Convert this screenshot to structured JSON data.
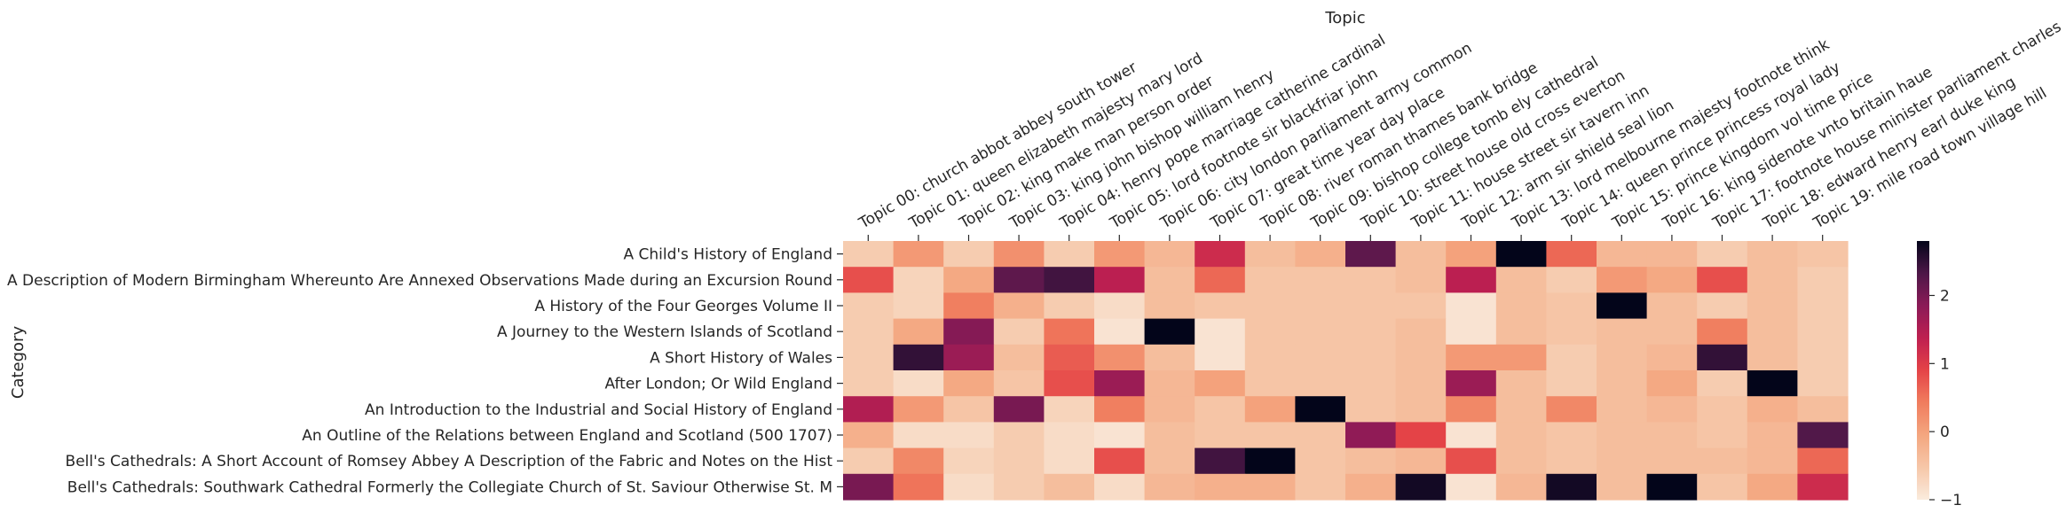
{
  "chart_data": {
    "type": "heatmap",
    "title": "",
    "xlabel": "Topic",
    "ylabel": "Category",
    "x_axis_position": "top",
    "grid": false,
    "colormap": "rocket_r",
    "colorbar": {
      "placement": "right",
      "vmin": -1.0,
      "vmax": 2.8,
      "ticks": [
        -1,
        0,
        1,
        2
      ]
    },
    "columns": [
      "Topic 00: church abbot abbey south tower",
      "Topic 01: queen elizabeth majesty mary lord",
      "Topic 02: king make man person order",
      "Topic 03: king john bishop william henry",
      "Topic 04: henry pope marriage catherine cardinal",
      "Topic 05: lord footnote sir blackfriar john",
      "Topic 06: city london parliament army common",
      "Topic 07: great time year day place",
      "Topic 08: river roman thames bank bridge",
      "Topic 09: bishop college tomb ely cathedral",
      "Topic 10: street house old cross everton",
      "Topic 11: house street sir tavern inn",
      "Topic 12: arm sir shield seal lion",
      "Topic 13: lord melbourne majesty footnote think",
      "Topic 14: queen prince princess royal lady",
      "Topic 15: prince kingdom vol time price",
      "Topic 16: king sidenote vnto britain haue",
      "Topic 17: footnote house minister parliament charles",
      "Topic 18: edward henry earl duke king",
      "Topic 19: mile road town village hill"
    ],
    "rows": [
      "A Child's History of England",
      "A Description of Modern Birmingham Whereunto Are Annexed Observations Made during an Excursion Round",
      "A History of the Four Georges Volume II",
      "A Journey to the Western Islands of Scotland",
      "A Short History of Wales",
      "After London; Or Wild England",
      "An Introduction to the Industrial and Social History of England",
      "An Outline of the Relations between England and Scotland (500 1707)",
      "Bell's Cathedrals: A Short Account of Romsey Abbey A Description of the Fabric and Notes on the Hist",
      "Bell's Cathedrals: Southwark Cathedral Formerly the Collegiate Church of St. Saviour Otherwise St. M"
    ],
    "values": [
      [
        -0.6,
        0.1,
        -0.6,
        0.2,
        -0.6,
        0.1,
        -0.3,
        1.2,
        -0.4,
        -0.2,
        2.2,
        -0.4,
        0.0,
        2.8,
        0.6,
        -0.3,
        -0.3,
        -0.6,
        -0.4,
        -0.5
      ],
      [
        0.8,
        -0.7,
        -0.1,
        2.2,
        2.4,
        1.4,
        -0.4,
        0.6,
        -0.5,
        -0.5,
        -0.5,
        -0.4,
        1.4,
        -0.4,
        -0.6,
        0.1,
        -0.1,
        0.8,
        -0.4,
        -0.6
      ],
      [
        -0.6,
        -0.7,
        0.4,
        -0.2,
        -0.6,
        -0.8,
        -0.4,
        -0.5,
        -0.5,
        -0.5,
        -0.5,
        -0.5,
        -0.9,
        -0.4,
        -0.5,
        2.8,
        -0.4,
        -0.6,
        -0.4,
        -0.6
      ],
      [
        -0.6,
        -0.1,
        1.9,
        -0.6,
        0.5,
        -0.9,
        2.8,
        -0.9,
        -0.5,
        -0.5,
        -0.5,
        -0.4,
        -0.9,
        -0.4,
        -0.5,
        -0.4,
        -0.4,
        0.4,
        -0.4,
        -0.6
      ],
      [
        -0.6,
        2.5,
        1.7,
        -0.4,
        0.7,
        0.2,
        -0.4,
        -0.9,
        -0.5,
        -0.5,
        -0.5,
        -0.4,
        0.1,
        0.1,
        -0.6,
        -0.4,
        -0.3,
        2.5,
        -0.4,
        -0.6
      ],
      [
        -0.6,
        -0.8,
        -0.1,
        -0.5,
        0.8,
        1.7,
        -0.3,
        0.0,
        -0.5,
        -0.5,
        -0.5,
        -0.4,
        1.7,
        -0.4,
        -0.6,
        -0.4,
        -0.1,
        -0.6,
        2.8,
        -0.6
      ],
      [
        1.5,
        0.1,
        -0.5,
        2.0,
        -0.7,
        0.4,
        -0.3,
        -0.5,
        0.0,
        2.8,
        -0.5,
        -0.4,
        0.3,
        -0.4,
        0.3,
        -0.4,
        -0.3,
        -0.5,
        -0.2,
        -0.4
      ],
      [
        -0.2,
        -0.8,
        -0.8,
        -0.6,
        -0.8,
        -0.9,
        -0.4,
        -0.5,
        -0.5,
        -0.5,
        1.8,
        0.9,
        -0.9,
        -0.4,
        -0.5,
        -0.4,
        -0.4,
        -0.5,
        -0.3,
        2.3
      ],
      [
        -0.6,
        0.3,
        -0.7,
        -0.6,
        -0.8,
        0.8,
        -0.4,
        2.4,
        2.8,
        -0.5,
        -0.4,
        -0.3,
        0.8,
        -0.4,
        -0.5,
        -0.4,
        -0.4,
        -0.4,
        -0.3,
        0.6
      ],
      [
        2.0,
        0.5,
        -0.8,
        -0.6,
        -0.4,
        -0.8,
        -0.3,
        -0.2,
        -0.2,
        -0.5,
        -0.2,
        2.7,
        -0.9,
        -0.3,
        2.7,
        -0.4,
        2.8,
        -0.5,
        -0.1,
        1.2
      ]
    ]
  }
}
